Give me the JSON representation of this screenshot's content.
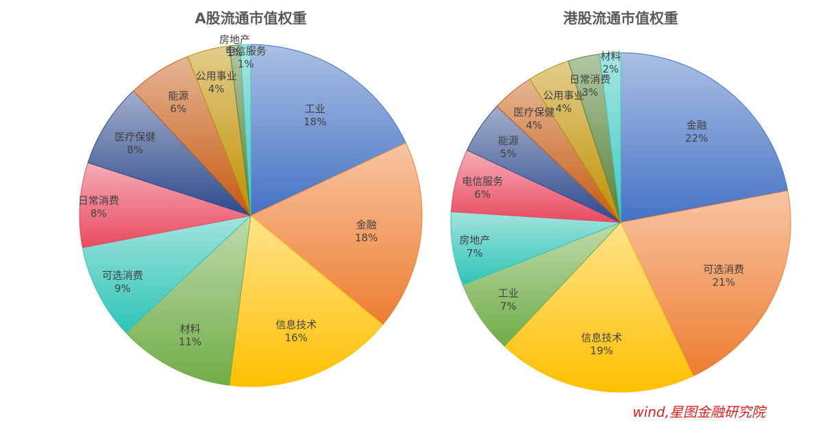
{
  "chart_data": [
    {
      "type": "pie",
      "title": "A股流通市值权重",
      "slices": [
        {
          "label": "工业",
          "value": 18,
          "value_label": "18%",
          "color": "#4472c4"
        },
        {
          "label": "金融",
          "value": 18,
          "value_label": "18%",
          "color": "#ed7d31"
        },
        {
          "label": "信息技术",
          "value": 16,
          "value_label": "16%",
          "color": "#ffc000"
        },
        {
          "label": "材料",
          "value": 11,
          "value_label": "11%",
          "color": "#70ad47"
        },
        {
          "label": "可选消费",
          "value": 9,
          "value_label": "9%",
          "color": "#2ec4b6"
        },
        {
          "label": "日常消费",
          "value": 8,
          "value_label": "8%",
          "color": "#e84a5f"
        },
        {
          "label": "医疗保健",
          "value": 8,
          "value_label": "8%",
          "color": "#2e4a8c"
        },
        {
          "label": "能源",
          "value": 6,
          "value_label": "6%",
          "color": "#c55a11"
        },
        {
          "label": "公用事业",
          "value": 4,
          "value_label": "4%",
          "color": "#bf9000"
        },
        {
          "label": "房地产",
          "value": 1,
          "value_label": "1%",
          "color": "#548235"
        },
        {
          "label": "电信服务",
          "value": 1,
          "value_label": "1%",
          "color": "#3cc8c0"
        }
      ]
    },
    {
      "type": "pie",
      "title": "港股流通市值权重",
      "slices": [
        {
          "label": "金融",
          "value": 22,
          "value_label": "22%",
          "color": "#4472c4"
        },
        {
          "label": "可选消费",
          "value": 21,
          "value_label": "21%",
          "color": "#ed7d31"
        },
        {
          "label": "信息技术",
          "value": 19,
          "value_label": "19%",
          "color": "#ffc000"
        },
        {
          "label": "工业",
          "value": 7,
          "value_label": "7%",
          "color": "#70ad47"
        },
        {
          "label": "房地产",
          "value": 7,
          "value_label": "7%",
          "color": "#2ec4b6"
        },
        {
          "label": "电信服务",
          "value": 6,
          "value_label": "6%",
          "color": "#e84a5f"
        },
        {
          "label": "能源",
          "value": 5,
          "value_label": "5%",
          "color": "#2e4a8c"
        },
        {
          "label": "医疗保健",
          "value": 4,
          "value_label": "4%",
          "color": "#c55a11"
        },
        {
          "label": "公用事业",
          "value": 4,
          "value_label": "4%",
          "color": "#bf9000"
        },
        {
          "label": "日常消费",
          "value": 3,
          "value_label": "3%",
          "color": "#548235"
        },
        {
          "label": "材料",
          "value": 2,
          "value_label": "2%",
          "color": "#3cc8c0"
        }
      ]
    }
  ],
  "source_note": "wind,星图金融研究院"
}
